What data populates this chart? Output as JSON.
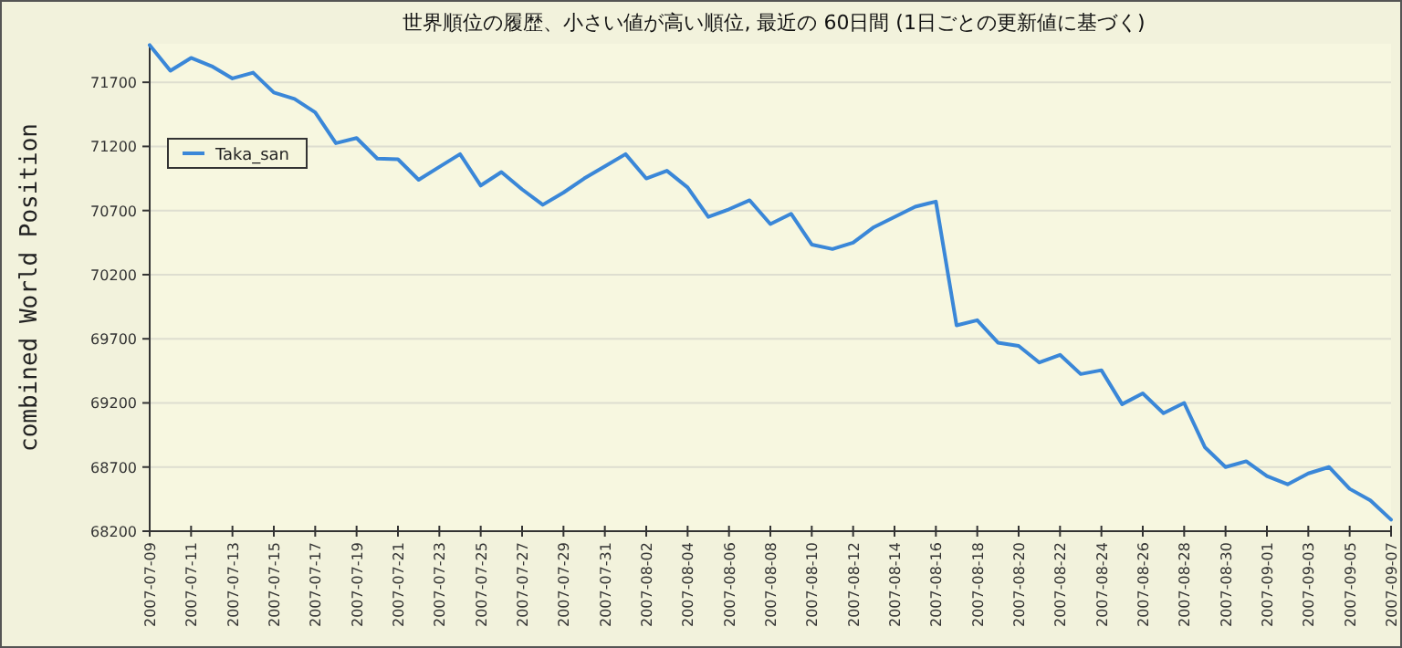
{
  "chart_data": {
    "type": "line",
    "title": "世界順位の履歴、小さい値が高い順位, 最近の 60日間 (1日ごとの更新値に基づく)",
    "ylabel": "combined World Position",
    "x": [
      "2007-07-09",
      "2007-07-10",
      "2007-07-11",
      "2007-07-12",
      "2007-07-13",
      "2007-07-14",
      "2007-07-15",
      "2007-07-16",
      "2007-07-17",
      "2007-07-18",
      "2007-07-19",
      "2007-07-20",
      "2007-07-21",
      "2007-07-22",
      "2007-07-23",
      "2007-07-24",
      "2007-07-25",
      "2007-07-26",
      "2007-07-27",
      "2007-07-28",
      "2007-07-29",
      "2007-07-30",
      "2007-07-31",
      "2007-08-01",
      "2007-08-02",
      "2007-08-03",
      "2007-08-04",
      "2007-08-05",
      "2007-08-06",
      "2007-08-07",
      "2007-08-08",
      "2007-08-09",
      "2007-08-10",
      "2007-08-11",
      "2007-08-12",
      "2007-08-13",
      "2007-08-14",
      "2007-08-15",
      "2007-08-16",
      "2007-08-17",
      "2007-08-18",
      "2007-08-19",
      "2007-08-20",
      "2007-08-21",
      "2007-08-22",
      "2007-08-23",
      "2007-08-24",
      "2007-08-25",
      "2007-08-26",
      "2007-08-27",
      "2007-08-28",
      "2007-08-29",
      "2007-08-30",
      "2007-08-31",
      "2007-09-01",
      "2007-09-02",
      "2007-09-03",
      "2007-09-04",
      "2007-09-05",
      "2007-09-06",
      "2007-09-07"
    ],
    "series": [
      {
        "name": "Taka_san",
        "color": "#3a87d8",
        "values": [
          71990,
          71790,
          71890,
          71825,
          71730,
          71775,
          71620,
          71570,
          71465,
          71225,
          71265,
          71105,
          71100,
          70940,
          71040,
          71140,
          70895,
          71000,
          70865,
          70745,
          70840,
          70950,
          71045,
          71140,
          70950,
          71010,
          70880,
          70650,
          70710,
          70780,
          70595,
          70675,
          70435,
          70400,
          70450,
          70570,
          70650,
          70730,
          70770,
          69805,
          69845,
          69670,
          69645,
          69515,
          69575,
          69425,
          69455,
          69190,
          69275,
          69120,
          69200,
          68855,
          68700,
          68745,
          68630,
          68565,
          68650,
          68700,
          68530,
          68440,
          68290
        ]
      }
    ],
    "xlim": [
      "2007-07-09",
      "2007-09-07"
    ],
    "xticks": [
      "2007-07-09",
      "2007-07-11",
      "2007-07-13",
      "2007-07-15",
      "2007-07-17",
      "2007-07-19",
      "2007-07-21",
      "2007-07-23",
      "2007-07-25",
      "2007-07-27",
      "2007-07-29",
      "2007-07-31",
      "2007-08-02",
      "2007-08-04",
      "2007-08-06",
      "2007-08-08",
      "2007-08-10",
      "2007-08-12",
      "2007-08-14",
      "2007-08-16",
      "2007-08-18",
      "2007-08-20",
      "2007-08-22",
      "2007-08-24",
      "2007-08-26",
      "2007-08-28",
      "2007-08-30",
      "2007-09-01",
      "2007-09-03",
      "2007-09-05",
      "2007-09-07"
    ],
    "ylim": [
      68200,
      72000
    ],
    "yticks": [
      68200,
      68700,
      69200,
      69700,
      70200,
      70700,
      71200,
      71700
    ],
    "grid": "y",
    "legend": "top left",
    "marker": "none",
    "line_style": "solid"
  }
}
